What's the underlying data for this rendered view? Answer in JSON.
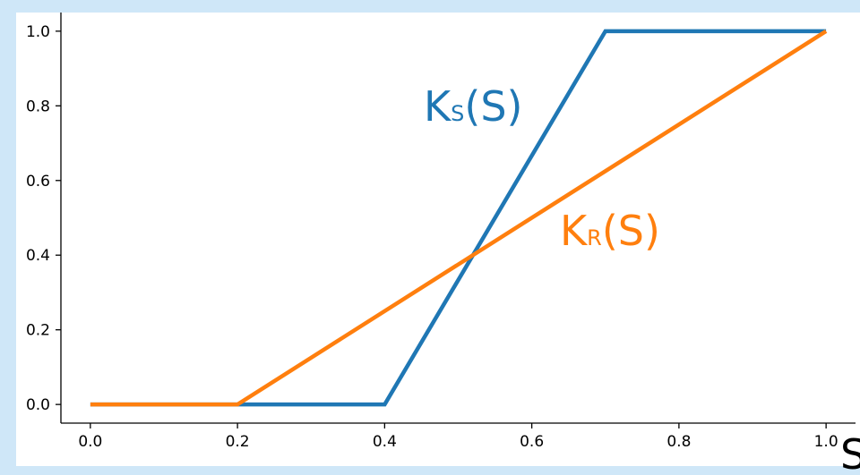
{
  "chart_data": {
    "type": "line",
    "title": "",
    "xlabel": "S",
    "ylabel": "",
    "xlim": [
      -0.04,
      1.04
    ],
    "ylim": [
      -0.05,
      1.05
    ],
    "x_ticks": [
      "0.0",
      "0.2",
      "0.4",
      "0.6",
      "0.8",
      "1.0"
    ],
    "y_ticks": [
      "0.0",
      "0.2",
      "0.4",
      "0.6",
      "0.8",
      "1.0"
    ],
    "grid": false,
    "series": [
      {
        "color": "#1f77b4",
        "x": [
          0.0,
          0.4,
          0.7,
          1.0
        ],
        "y": [
          0.0,
          0.0,
          1.0,
          1.0
        ]
      },
      {
        "color": "#ff7f0e",
        "x": [
          0.0,
          0.2,
          1.0
        ],
        "y": [
          0.0,
          0.0,
          1.0
        ]
      }
    ],
    "annotations": [
      {
        "main": "K",
        "sub": "S",
        "rest": "(S)",
        "color": "#1f77b4"
      },
      {
        "main": "K",
        "sub": "R",
        "rest": "(S)",
        "color": "#ff7f0e"
      }
    ]
  }
}
